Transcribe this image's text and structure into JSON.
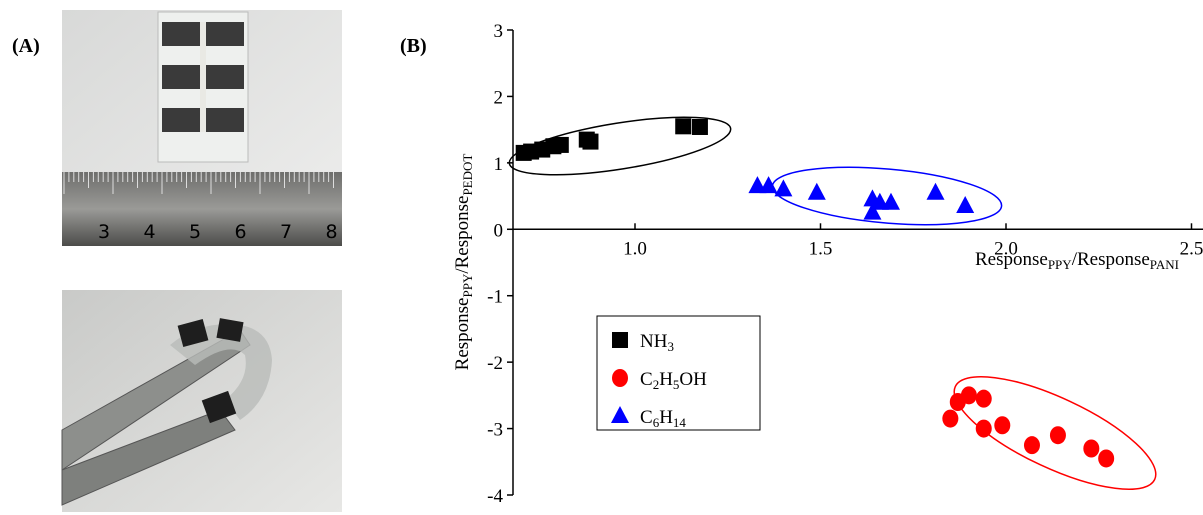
{
  "panel_labels": [
    "(A)",
    "(B)"
  ],
  "ruler_labels": [
    3,
    4,
    5,
    6,
    7,
    8
  ],
  "chart_data": {
    "type": "scatter",
    "xlabel": [
      "Response",
      "PPY",
      "/Response",
      "PANI"
    ],
    "ylabel": [
      "Response",
      "PPY",
      "/Response",
      "PEDOT"
    ],
    "xlim": [
      0.67,
      2.55
    ],
    "ylim": [
      -4,
      3
    ],
    "xticks": [
      {
        "value": 1,
        "label": "1.0"
      },
      {
        "value": 1.5,
        "label": "1.5"
      },
      {
        "value": 2,
        "label": "2.0"
      },
      {
        "value": 2.5,
        "label": "2.5"
      }
    ],
    "yticks": [
      -4,
      -3,
      -2,
      -1,
      0,
      1,
      2,
      3
    ],
    "series": [
      {
        "name": "NH3",
        "color": "#000000",
        "marker": "square",
        "x": [
          0.7,
          0.72,
          0.75,
          0.78,
          0.8,
          0.87,
          0.88,
          1.13,
          1.175
        ],
        "values": [
          1.15,
          1.17,
          1.2,
          1.25,
          1.27,
          1.35,
          1.32,
          1.55,
          1.54
        ]
      },
      {
        "name": "C2H5OH",
        "color": "#ff0000",
        "marker": "circle",
        "x": [
          1.85,
          1.87,
          1.9,
          1.94,
          1.94,
          1.99,
          2.07,
          2.14,
          2.23,
          2.27
        ],
        "values": [
          -2.85,
          -2.6,
          -2.5,
          -2.55,
          -3.0,
          -2.95,
          -3.25,
          -3.1,
          -3.3,
          -3.45
        ]
      },
      {
        "name": "C6H14",
        "color": "#0000ff",
        "marker": "triangle",
        "x": [
          1.33,
          1.36,
          1.4,
          1.49,
          1.64,
          1.64,
          1.66,
          1.69,
          1.81,
          1.89
        ],
        "values": [
          0.65,
          0.65,
          0.6,
          0.55,
          0.25,
          0.45,
          0.4,
          0.4,
          0.55,
          0.35
        ]
      }
    ]
  }
}
